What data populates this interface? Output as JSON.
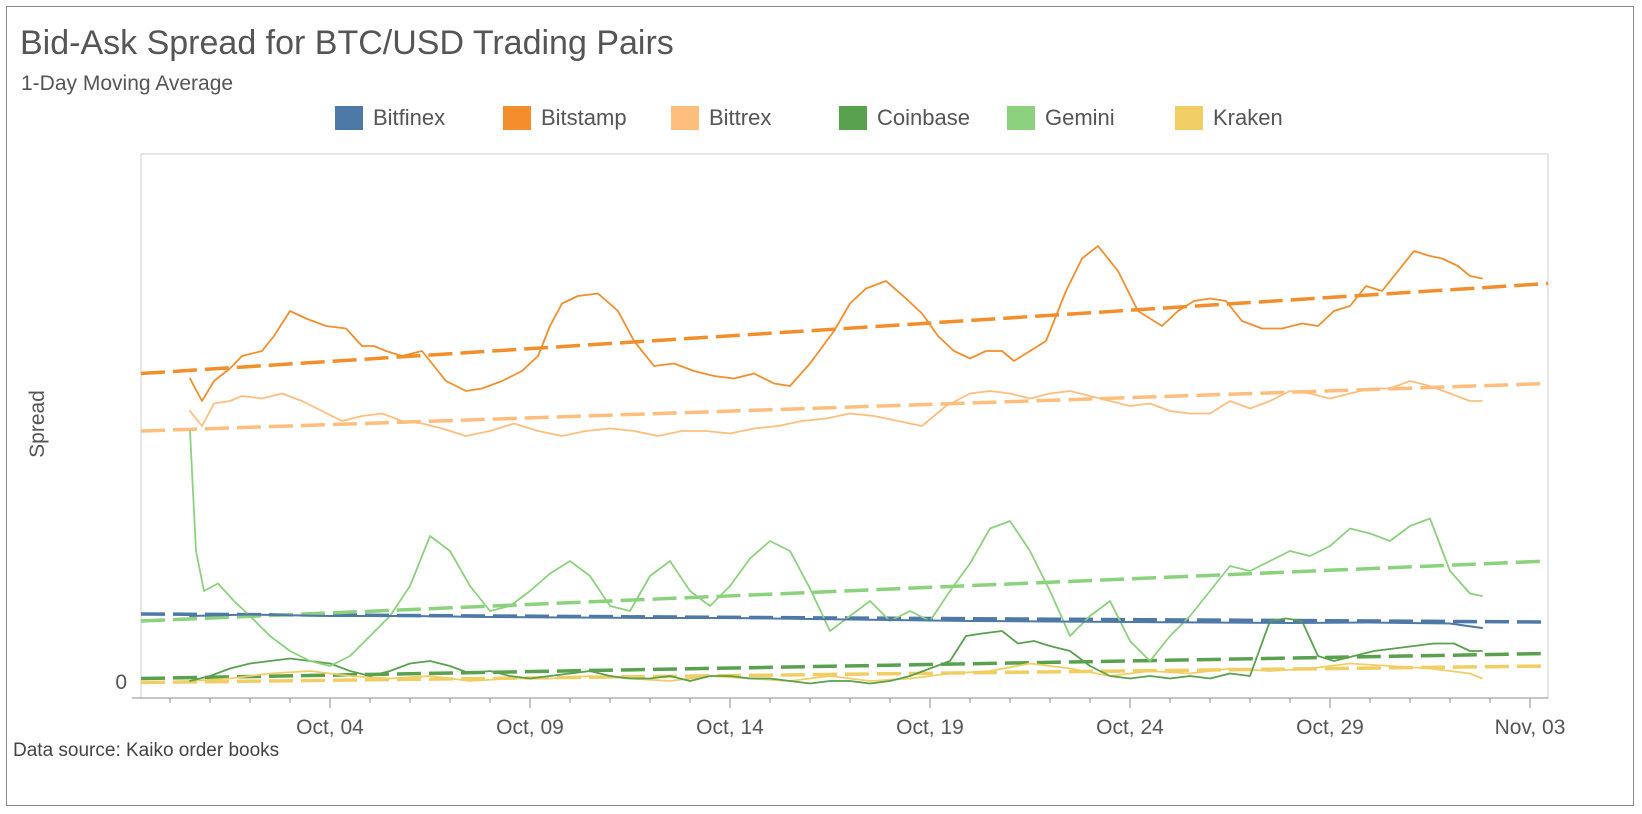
{
  "title": "Bid-Ask Spread for BTC/USD Trading Pairs",
  "subtitle": "1-Day Moving Average",
  "source": "Data source: Kaiko order books",
  "chart_data": {
    "type": "line",
    "title": "Bid-Ask Spread for BTC/USD Trading Pairs",
    "subtitle": "1-Day Moving Average",
    "ylabel": "Spread",
    "xlabel": "",
    "x_ticks": [
      "Oct, 04",
      "Oct, 09",
      "Oct, 14",
      "Oct, 19",
      "Oct, 24",
      "Oct, 29",
      "Nov, 03"
    ],
    "y_ticks": [
      "0"
    ],
    "x_range": [
      "Sep 29",
      "Nov 03"
    ],
    "ylim": [
      0,
      100
    ],
    "legend_position": "top",
    "grid": false,
    "series": [
      {
        "name": "Bitfinex",
        "color": "#4e79a7",
        "x": [
          1.5,
          3,
          5,
          7,
          9,
          11,
          13,
          15,
          17,
          19,
          21,
          23,
          25,
          27,
          29,
          31,
          33,
          33.8
        ],
        "values": [
          13.0,
          13.3,
          13.0,
          13.0,
          12.8,
          12.7,
          12.6,
          12.6,
          12.4,
          12.2,
          12.0,
          11.9,
          11.8,
          11.7,
          11.6,
          11.7,
          11.5,
          10.6
        ],
        "trend": [
          13.4,
          11.8
        ]
      },
      {
        "name": "Bitstamp",
        "color": "#f28e2b",
        "x": [
          1.5,
          1.8,
          2.1,
          2.5,
          2.8,
          3.3,
          3.6,
          4.0,
          4.4,
          4.9,
          5.4,
          5.8,
          6.1,
          6.4,
          6.8,
          7.3,
          7.9,
          8.4,
          8.8,
          9.3,
          9.8,
          10.2,
          10.5,
          10.8,
          11.2,
          11.7,
          12.2,
          12.6,
          13.1,
          13.6,
          14.1,
          14.6,
          15.1,
          15.6,
          16.1,
          16.5,
          17.0,
          17.6,
          18.0,
          18.4,
          18.9,
          19.4,
          19.8,
          20.2,
          20.6,
          21.0,
          21.4,
          21.8,
          22.1,
          22.5,
          22.9,
          23.4,
          23.8,
          24.2,
          24.7,
          25.2,
          25.8,
          26.2,
          26.6,
          27.0,
          27.4,
          27.8,
          28.3,
          28.8,
          29.3,
          29.7,
          30.1,
          30.5,
          30.9,
          31.3,
          31.7,
          32.1,
          32.5,
          32.8,
          33.2,
          33.5,
          33.8
        ],
        "values": [
          60.5,
          56.0,
          60.0,
          62.5,
          65.0,
          66.0,
          69.0,
          74.0,
          72.5,
          71.0,
          70.5,
          67.0,
          67.0,
          66.0,
          65.0,
          66.0,
          60.0,
          58.0,
          58.5,
          60.0,
          62.0,
          65.0,
          71.0,
          75.5,
          77.0,
          77.5,
          74.0,
          68.0,
          63.0,
          63.5,
          62.0,
          61.0,
          60.5,
          61.5,
          59.5,
          59.0,
          63.5,
          70.0,
          75.5,
          78.5,
          80.0,
          76.5,
          73.5,
          69.0,
          66.0,
          64.5,
          66.0,
          66.0,
          64.0,
          66.0,
          68.0,
          78.0,
          84.5,
          87.0,
          82.0,
          74.0,
          71.0,
          74.0,
          76.0,
          76.5,
          76.0,
          72.0,
          70.5,
          70.5,
          71.5,
          71.0,
          74.0,
          75.0,
          79.0,
          78.0,
          82.0,
          86.0,
          85.0,
          84.5,
          83.0,
          81.0,
          80.5
        ],
        "trend": [
          61.5,
          79.5
        ]
      },
      {
        "name": "Bittrex",
        "color": "#ffbe7d",
        "x": [
          1.5,
          1.8,
          2.1,
          2.5,
          2.8,
          3.3,
          3.8,
          4.3,
          4.8,
          5.3,
          5.8,
          6.3,
          6.8,
          7.3,
          7.8,
          8.4,
          9.0,
          9.6,
          10.2,
          10.8,
          11.4,
          12.0,
          12.6,
          13.2,
          13.8,
          14.4,
          15.0,
          15.6,
          16.2,
          16.8,
          17.4,
          18.0,
          18.6,
          19.2,
          19.8,
          20.4,
          21.0,
          21.5,
          22.0,
          22.5,
          23.0,
          23.5,
          24.0,
          24.5,
          25.0,
          25.5,
          26.0,
          26.5,
          27.0,
          27.5,
          28.0,
          28.5,
          29.0,
          29.5,
          30.0,
          30.5,
          31.0,
          31.5,
          32.0,
          32.5,
          33.0,
          33.5,
          33.8
        ],
        "values": [
          54.0,
          51.0,
          55.5,
          56.0,
          57.0,
          56.5,
          57.5,
          56.0,
          54.0,
          52.0,
          53.0,
          53.5,
          52.0,
          51.5,
          50.5,
          49.0,
          50.0,
          51.5,
          50.0,
          49.0,
          50.0,
          50.5,
          50.0,
          49.0,
          50.0,
          50.0,
          49.5,
          50.5,
          51.0,
          52.0,
          52.5,
          53.5,
          53.0,
          52.0,
          51.0,
          55.0,
          57.5,
          58.0,
          57.5,
          56.5,
          57.5,
          58.0,
          57.0,
          56.0,
          55.0,
          55.5,
          54.0,
          53.5,
          53.5,
          56.0,
          54.5,
          56.0,
          58.0,
          57.5,
          56.5,
          57.5,
          58.5,
          58.5,
          60.0,
          59.0,
          57.5,
          56.0,
          56.0
        ],
        "trend": [
          50.0,
          59.5
        ]
      },
      {
        "name": "Coinbase",
        "color": "#59a14f",
        "x": [
          1.5,
          2.0,
          2.5,
          3.0,
          3.5,
          4.0,
          4.5,
          5.0,
          5.5,
          6.0,
          6.5,
          7.0,
          7.5,
          8.0,
          8.5,
          9.0,
          9.5,
          10.0,
          10.5,
          11.0,
          11.5,
          12.0,
          12.5,
          13.0,
          13.5,
          14.0,
          14.5,
          15.0,
          15.5,
          16.0,
          16.5,
          17.0,
          17.5,
          18.0,
          18.5,
          19.0,
          19.5,
          20.0,
          20.5,
          20.9,
          21.3,
          21.8,
          22.2,
          22.6,
          23.0,
          23.5,
          24.0,
          24.5,
          25.0,
          25.5,
          26.0,
          26.5,
          27.0,
          27.5,
          28.0,
          28.5,
          28.9,
          29.3,
          29.7,
          30.1,
          30.6,
          31.1,
          31.6,
          32.1,
          32.6,
          33.1,
          33.5,
          33.8
        ],
        "values": [
          0.0,
          1.0,
          2.5,
          3.5,
          4.0,
          4.5,
          4.0,
          3.5,
          2.0,
          1.0,
          2.0,
          3.5,
          4.0,
          3.0,
          1.5,
          2.0,
          1.0,
          0.5,
          1.0,
          1.5,
          2.0,
          1.0,
          0.5,
          0.5,
          1.0,
          0.0,
          1.0,
          1.0,
          0.5,
          0.5,
          0.0,
          -0.5,
          0.0,
          0.0,
          -0.5,
          0.0,
          1.0,
          2.5,
          4.0,
          9.0,
          9.5,
          10.0,
          7.5,
          8.0,
          7.0,
          6.0,
          3.0,
          1.0,
          0.5,
          1.0,
          0.5,
          1.0,
          0.5,
          1.5,
          1.0,
          12.0,
          12.5,
          12.0,
          5.0,
          4.0,
          5.0,
          6.0,
          6.5,
          7.0,
          7.5,
          7.5,
          6.0,
          6.0
        ],
        "trend": [
          0.5,
          5.5
        ]
      },
      {
        "name": "Gemini",
        "color": "#8cd17d",
        "x": [
          1.5,
          1.65,
          1.85,
          2.2,
          2.6,
          3.0,
          3.5,
          4.0,
          4.5,
          5.0,
          5.5,
          6.0,
          6.5,
          7.0,
          7.5,
          8.0,
          8.5,
          9.0,
          9.5,
          10.0,
          10.5,
          11.0,
          11.5,
          12.0,
          12.5,
          13.0,
          13.5,
          14.0,
          14.5,
          15.0,
          15.5,
          16.0,
          16.5,
          17.0,
          17.5,
          18.0,
          18.5,
          19.0,
          19.5,
          20.0,
          20.5,
          21.0,
          21.5,
          22.0,
          22.5,
          23.0,
          23.5,
          24.0,
          24.5,
          25.0,
          25.5,
          26.0,
          26.5,
          27.0,
          27.5,
          28.0,
          28.5,
          29.0,
          29.5,
          30.0,
          30.5,
          31.0,
          31.5,
          32.0,
          32.5,
          33.0,
          33.5,
          33.8
        ],
        "values": [
          50.0,
          26.0,
          18.0,
          19.5,
          16.0,
          13.0,
          9.0,
          6.0,
          4.0,
          3.0,
          5.0,
          9.0,
          13.0,
          19.0,
          29.0,
          26.0,
          19.0,
          14.0,
          15.0,
          18.0,
          21.5,
          24.0,
          21.0,
          15.0,
          14.0,
          21.0,
          24.0,
          18.0,
          15.0,
          19.0,
          24.5,
          28.0,
          26.0,
          18.5,
          10.0,
          13.0,
          16.0,
          12.0,
          14.0,
          12.0,
          18.0,
          23.5,
          30.5,
          32.0,
          26.0,
          18.0,
          9.0,
          13.0,
          16.0,
          8.0,
          4.0,
          9.0,
          13.0,
          18.0,
          23.0,
          22.0,
          24.0,
          26.0,
          25.0,
          27.0,
          30.5,
          29.5,
          28.0,
          31.0,
          32.5,
          22.0,
          17.5,
          17.0
        ],
        "trend": [
          12.0,
          24.0
        ]
      },
      {
        "name": "Kraken",
        "color": "#f1ce63",
        "x": [
          1.5,
          2.5,
          3.5,
          4.5,
          5.5,
          6.5,
          7.5,
          8.5,
          9.5,
          10.5,
          11.5,
          12.5,
          13.5,
          14.5,
          15.5,
          16.5,
          17.5,
          18.5,
          19.5,
          20.5,
          21.5,
          22.5,
          23.5,
          24.5,
          25.5,
          26.5,
          27.5,
          28.5,
          29.5,
          30.5,
          31.5,
          32.5,
          33.5,
          33.8
        ],
        "values": [
          0.0,
          0.5,
          1.5,
          2.0,
          1.0,
          0.5,
          1.0,
          0.0,
          0.5,
          0.5,
          1.0,
          0.5,
          0.0,
          1.0,
          0.5,
          0.0,
          1.0,
          0.0,
          0.5,
          1.5,
          2.0,
          3.5,
          2.5,
          1.0,
          2.0,
          1.5,
          2.5,
          2.0,
          2.5,
          3.5,
          3.0,
          2.5,
          1.5,
          0.5
        ],
        "trend": [
          -0.3,
          3.0
        ]
      }
    ]
  }
}
